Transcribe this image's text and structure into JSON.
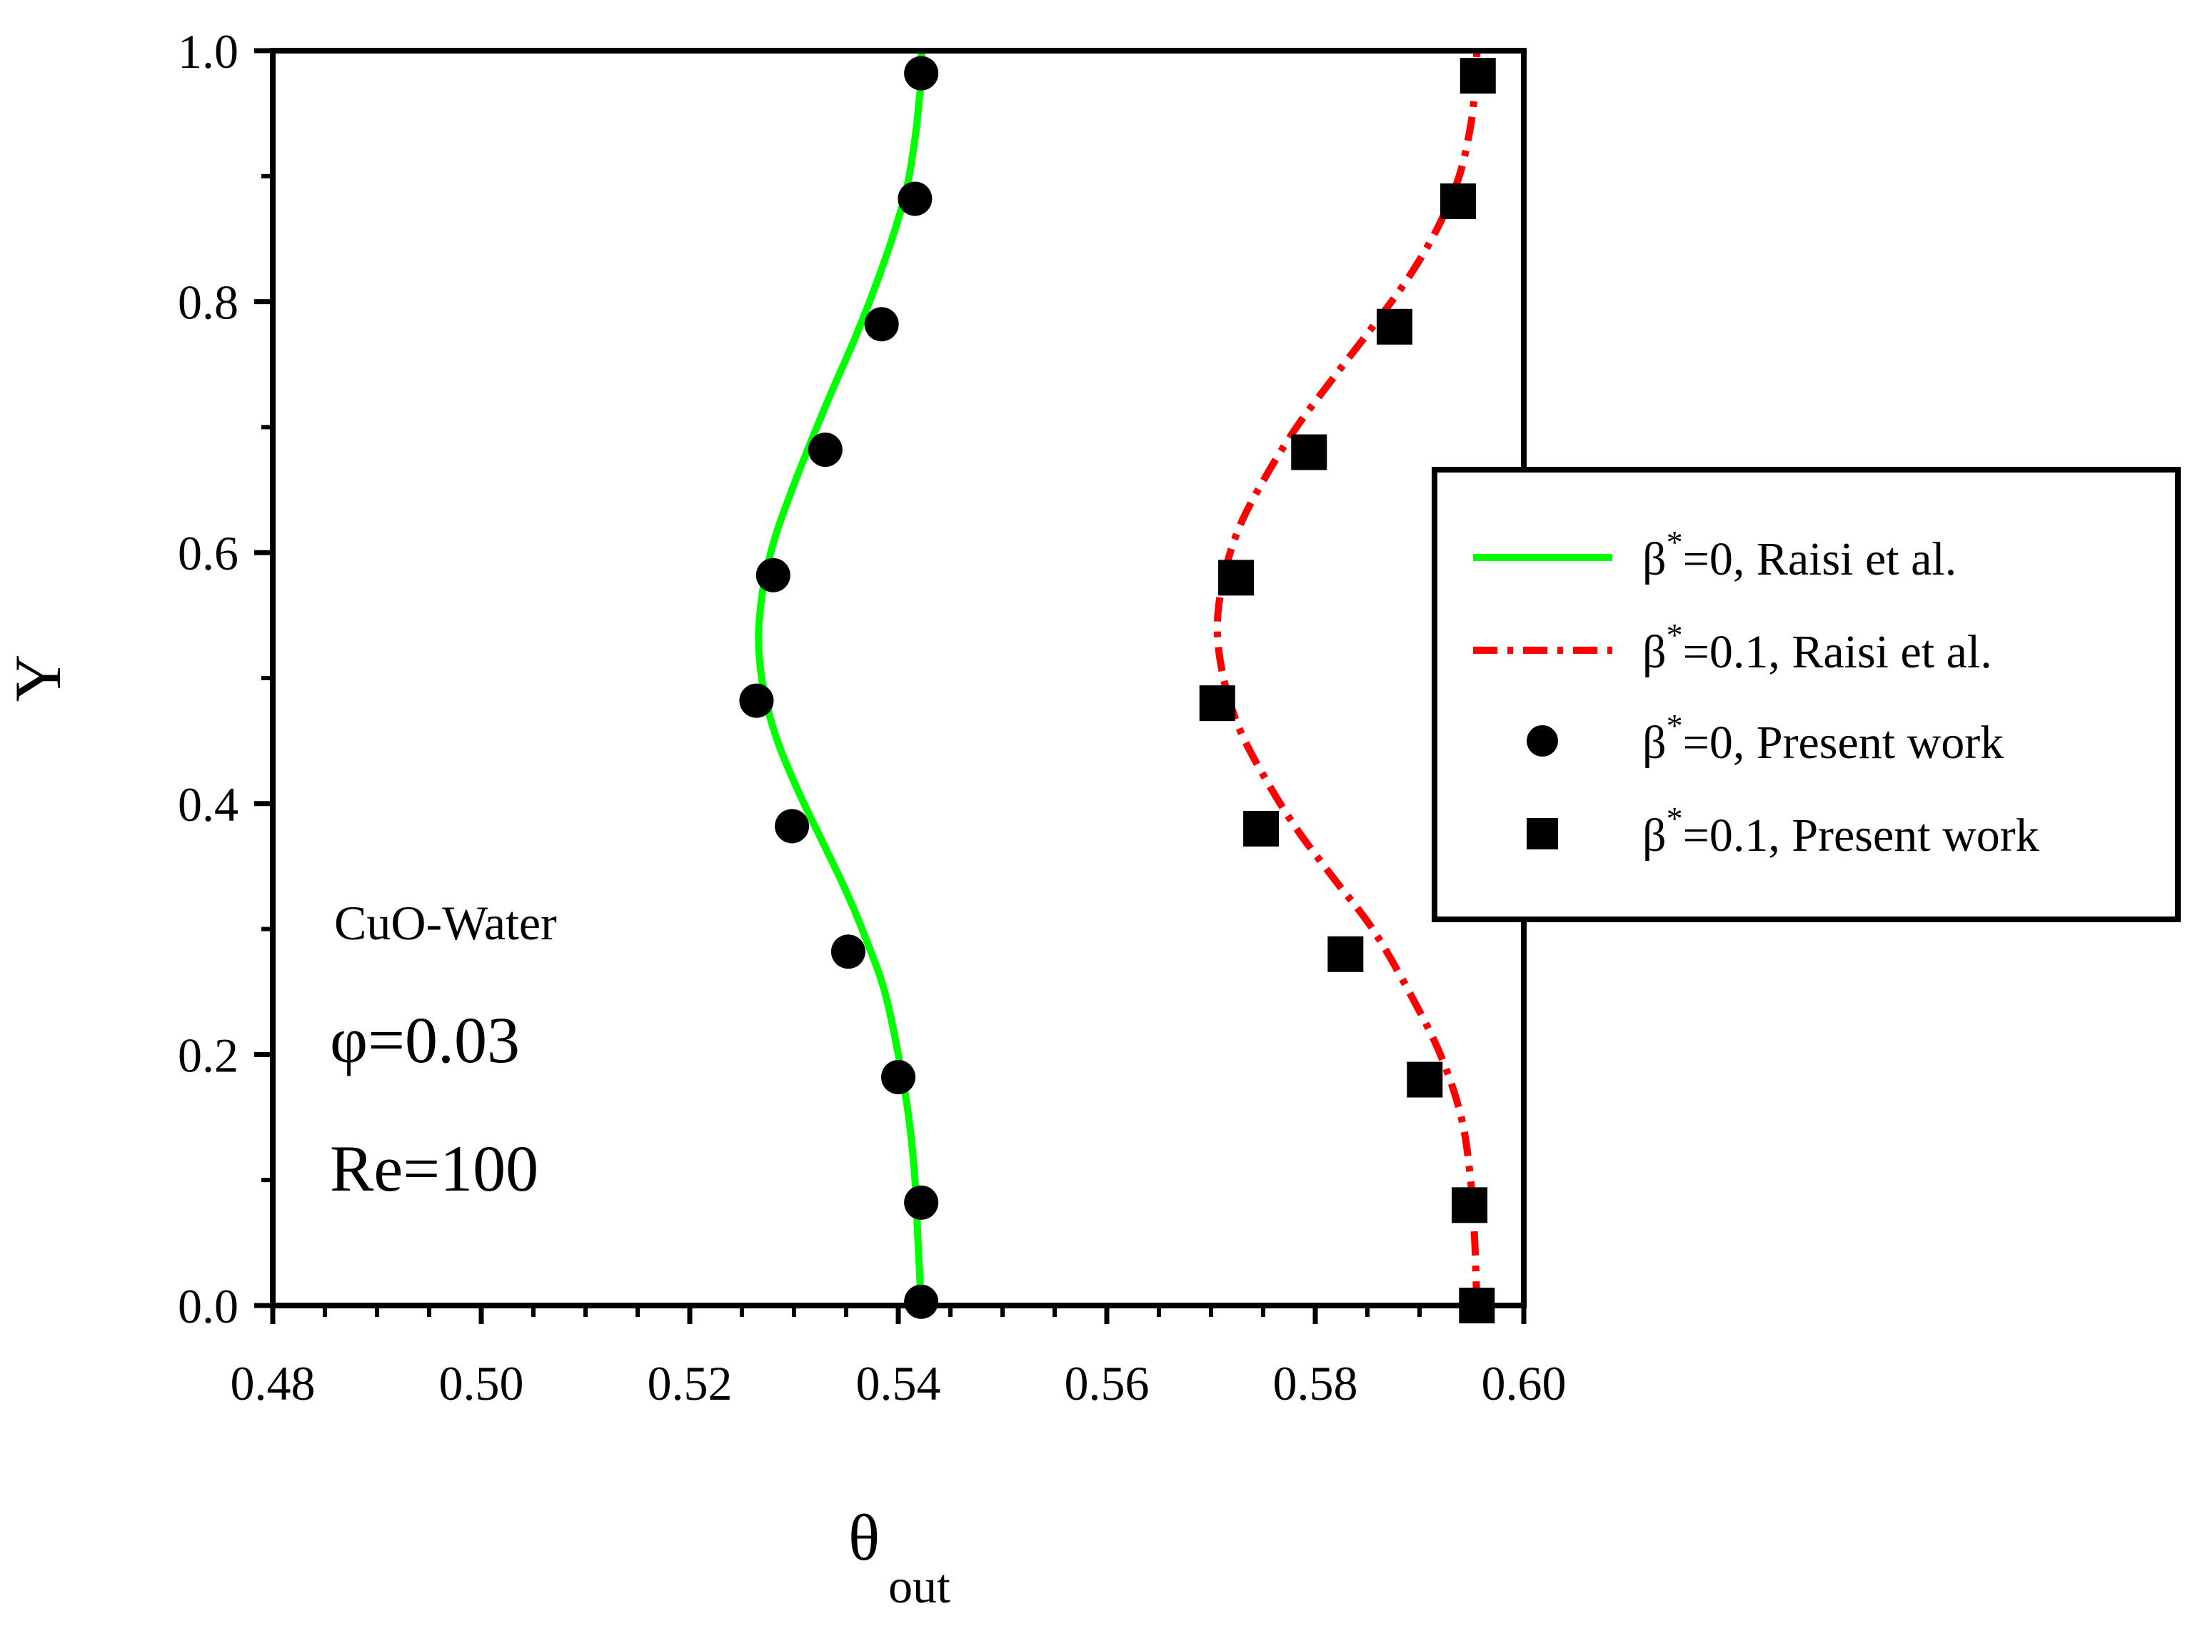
{
  "chart_data": {
    "type": "line",
    "title": "",
    "xlabel": "θ",
    "xlabel_sub": "out",
    "ylabel": "Y",
    "xlim": [
      0.48,
      0.6
    ],
    "ylim": [
      0.0,
      1.0
    ],
    "x_ticks": [
      "0.48",
      "0.50",
      "0.52",
      "0.54",
      "0.56",
      "0.58",
      "0.60"
    ],
    "y_ticks": [
      "0.0",
      "0.2",
      "0.4",
      "0.6",
      "0.8",
      "1.0"
    ],
    "grid": false,
    "legend_position": "right",
    "series": [
      {
        "name": "β*=0, Raisi et al.",
        "legend_prefix": "β",
        "legend_sup": "*",
        "legend_suffix": "=0, Raisi et al.",
        "style": "solid-line",
        "color": "#00ff00",
        "x": [
          0.5422,
          0.5419,
          0.5416,
          0.541,
          0.54,
          0.5387,
          0.537,
          0.535,
          0.5327,
          0.5304,
          0.5284,
          0.5271,
          0.5266,
          0.527,
          0.5281,
          0.5298,
          0.5317,
          0.5337,
          0.5358,
          0.5377,
          0.5394,
          0.5408,
          0.5416,
          0.542,
          0.5422,
          0.5422
        ],
        "y": [
          0.0,
          0.05,
          0.1,
          0.15,
          0.2,
          0.25,
          0.29,
          0.33,
          0.37,
          0.41,
          0.45,
          0.49,
          0.53,
          0.57,
          0.61,
          0.65,
          0.69,
          0.73,
          0.77,
          0.81,
          0.85,
          0.89,
          0.93,
          0.96,
          0.98,
          1.0
        ]
      },
      {
        "name": "β*=0.1, Raisi et al.",
        "legend_prefix": "β",
        "legend_sup": "*",
        "legend_suffix": "=0.1, Raisi et al.",
        "style": "dash-dot-line",
        "color": "#ff0000",
        "x": [
          0.5955,
          0.5953,
          0.5949,
          0.594,
          0.592,
          0.589,
          0.5855,
          0.5818,
          0.5782,
          0.5752,
          0.5727,
          0.5712,
          0.5706,
          0.5712,
          0.5727,
          0.5752,
          0.5782,
          0.5818,
          0.5855,
          0.589,
          0.5918,
          0.5938,
          0.5949,
          0.5953,
          0.5955
        ],
        "y": [
          0.0,
          0.05,
          0.1,
          0.15,
          0.2,
          0.25,
          0.3,
          0.34,
          0.38,
          0.42,
          0.46,
          0.5,
          0.54,
          0.58,
          0.62,
          0.66,
          0.7,
          0.74,
          0.78,
          0.82,
          0.86,
          0.9,
          0.94,
          0.97,
          1.0
        ]
      },
      {
        "name": "β*=0, Present work",
        "legend_prefix": "β",
        "legend_sup": "*",
        "legend_suffix": "=0, Present work",
        "style": "circle-marker",
        "color": "#000000",
        "x": [
          0.5422,
          0.5422,
          0.54,
          0.5352,
          0.5298,
          0.5264,
          0.528,
          0.533,
          0.5384,
          0.5416,
          0.5422
        ],
        "y": [
          0.003,
          0.082,
          0.182,
          0.282,
          0.382,
          0.482,
          0.582,
          0.682,
          0.782,
          0.882,
          0.982
        ]
      },
      {
        "name": "β*=0.1, Present work",
        "legend_prefix": "β",
        "legend_sup": "*",
        "legend_suffix": "=0.1, Present work",
        "style": "square-marker",
        "color": "#000000",
        "x": [
          0.5955,
          0.5948,
          0.5905,
          0.5829,
          0.5748,
          0.5706,
          0.5724,
          0.5794,
          0.5876,
          0.5937,
          0.5956
        ],
        "y": [
          0.0,
          0.08,
          0.18,
          0.28,
          0.38,
          0.48,
          0.58,
          0.68,
          0.78,
          0.88,
          0.98
        ]
      }
    ],
    "annotations": {
      "fluid": "CuO-Water",
      "phi": "φ=0.03",
      "re": "Re=100"
    }
  }
}
